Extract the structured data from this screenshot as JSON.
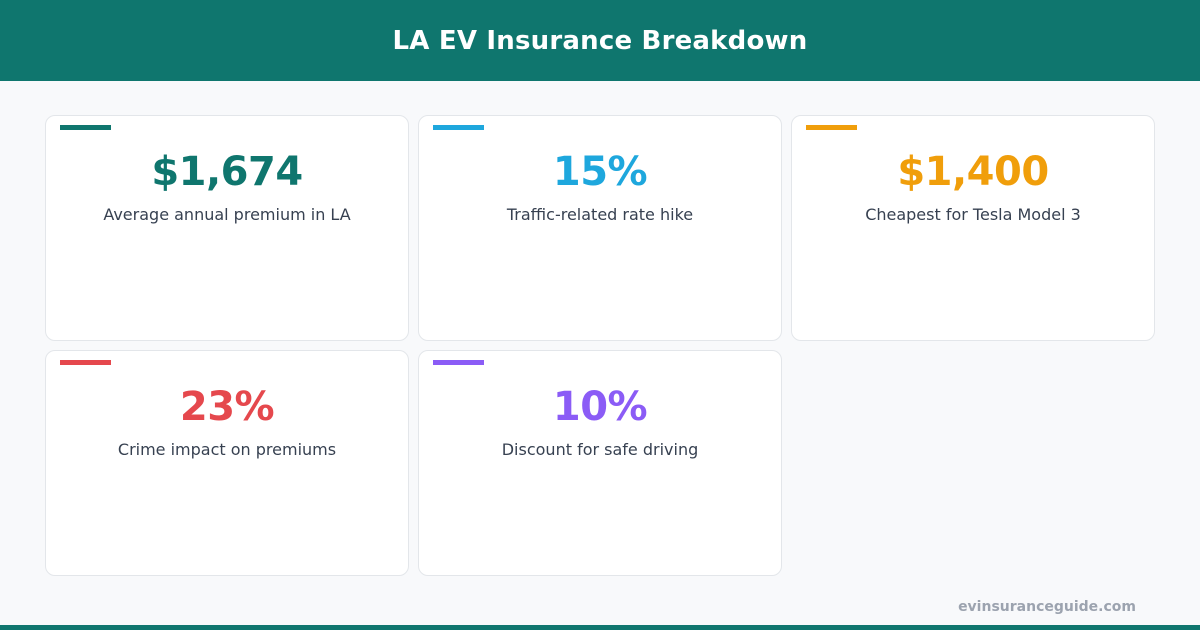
{
  "header": {
    "title": "LA EV Insurance Breakdown",
    "background": "#0f766e"
  },
  "stats": [
    {
      "value": "$1,674",
      "label": "Average annual premium in LA",
      "color": "#0f766e"
    },
    {
      "value": "15%",
      "label": "Traffic-related rate hike",
      "color": "#1ea7dd"
    },
    {
      "value": "$1,400",
      "label": "Cheapest for Tesla Model 3",
      "color": "#f09e0b"
    },
    {
      "value": "23%",
      "label": "Crime impact on premiums",
      "color": "#e5484d"
    },
    {
      "value": "10%",
      "label": "Discount for safe driving",
      "color": "#8b5cf6"
    }
  ],
  "footer": {
    "site": "evinsuranceguide.com"
  }
}
